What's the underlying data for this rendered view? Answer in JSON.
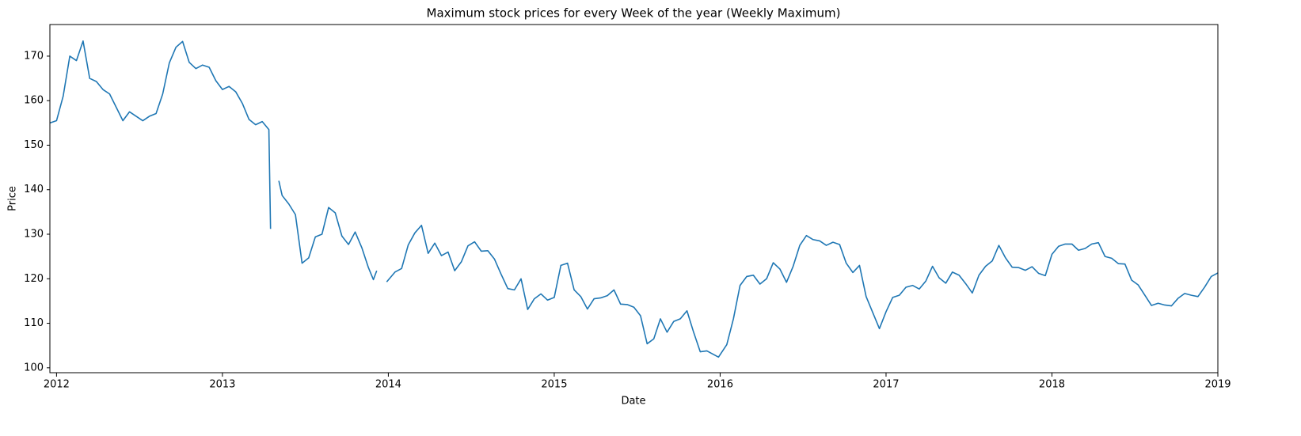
{
  "chart_data": {
    "type": "line",
    "title": "Maximum stock prices for every Week of the year (Weekly Maximum)",
    "xlabel": "Date",
    "ylabel": "Price",
    "color": "#1f77b4",
    "xlim": [
      2011.96,
      2019
    ],
    "ylim": [
      98.9,
      177.1
    ],
    "xticks": [
      2012,
      2013,
      2014,
      2015,
      2016,
      2017,
      2018,
      2019
    ],
    "yticks": [
      100,
      110,
      120,
      130,
      140,
      150,
      160,
      170
    ],
    "x": [
      2011.96,
      2012,
      2012.04,
      2012.08,
      2012.12,
      2012.16,
      2012.2,
      2012.24,
      2012.28,
      2012.32,
      2012.36,
      2012.4,
      2012.44,
      2012.48,
      2012.52,
      2012.56,
      2012.6,
      2012.64,
      2012.68,
      2012.72,
      2012.76,
      2012.8,
      2012.84,
      2012.88,
      2012.92,
      2012.96,
      2013,
      2013.04,
      2013.08,
      2013.12,
      2013.16,
      2013.2,
      2013.24,
      2013.28,
      2013.29,
      2013.32,
      2013.34,
      2013.36,
      2013.4,
      2013.44,
      2013.48,
      2013.52,
      2013.56,
      2013.6,
      2013.64,
      2013.68,
      2013.72,
      2013.76,
      2013.8,
      2013.84,
      2013.88,
      2013.91,
      2013.93,
      2013.95,
      2013.99,
      2014.04,
      2014.08,
      2014.12,
      2014.16,
      2014.2,
      2014.24,
      2014.28,
      2014.32,
      2014.36,
      2014.4,
      2014.44,
      2014.48,
      2014.52,
      2014.56,
      2014.6,
      2014.64,
      2014.68,
      2014.72,
      2014.76,
      2014.8,
      2014.84,
      2014.88,
      2014.92,
      2014.96,
      2015,
      2015.04,
      2015.08,
      2015.12,
      2015.16,
      2015.2,
      2015.24,
      2015.28,
      2015.32,
      2015.36,
      2015.4,
      2015.44,
      2015.48,
      2015.52,
      2015.56,
      2015.6,
      2015.64,
      2015.68,
      2015.72,
      2015.76,
      2015.8,
      2015.84,
      2015.88,
      2015.92,
      2015.96,
      2015.99,
      2016.04,
      2016.08,
      2016.12,
      2016.16,
      2016.2,
      2016.24,
      2016.28,
      2016.32,
      2016.36,
      2016.4,
      2016.44,
      2016.48,
      2016.52,
      2016.56,
      2016.6,
      2016.64,
      2016.68,
      2016.72,
      2016.76,
      2016.8,
      2016.84,
      2016.88,
      2016.92,
      2016.96,
      2017,
      2017.04,
      2017.08,
      2017.12,
      2017.16,
      2017.2,
      2017.24,
      2017.28,
      2017.32,
      2017.36,
      2017.4,
      2017.44,
      2017.48,
      2017.52,
      2017.56,
      2017.6,
      2017.64,
      2017.68,
      2017.72,
      2017.76,
      2017.8,
      2017.84,
      2017.88,
      2017.92,
      2017.96,
      2018,
      2018.04,
      2018.08,
      2018.12,
      2018.16,
      2018.2,
      2018.24,
      2018.28,
      2018.32,
      2018.36,
      2018.4,
      2018.44,
      2018.48,
      2018.52,
      2018.56,
      2018.6,
      2018.64,
      2018.68,
      2018.72,
      2018.76,
      2018.8,
      2018.84,
      2018.88,
      2018.92,
      2018.96,
      2019
    ],
    "values": [
      155,
      155.5,
      161,
      170,
      169,
      173.4,
      165,
      164.3,
      162.5,
      161.5,
      158.5,
      155.5,
      157.5,
      156.5,
      155.5,
      156.5,
      157.1,
      161.5,
      168.5,
      172,
      173.3,
      168.6,
      167.2,
      168,
      167.5,
      164.5,
      162.5,
      163.2,
      162,
      159.4,
      155.8,
      154.6,
      155.3,
      153.5,
      131.2,
      null,
      142,
      138.7,
      136.8,
      134.4,
      123.5,
      124.7,
      129.4,
      130,
      136,
      134.8,
      129.6,
      127.7,
      130.5,
      127,
      122.5,
      119.8,
      121.8,
      null,
      119.3,
      121.5,
      122.3,
      127.6,
      130.3,
      132,
      125.7,
      128,
      125.2,
      126,
      121.8,
      123.8,
      127.4,
      128.3,
      126.2,
      126.3,
      124.4,
      121,
      117.8,
      117.5,
      120,
      113.1,
      115.5,
      116.6,
      115.2,
      115.8,
      123,
      123.5,
      117.5,
      116,
      113.2,
      115.5,
      115.7,
      116.2,
      117.5,
      114.3,
      114.2,
      113.6,
      111.7,
      105.4,
      106.5,
      111,
      108,
      110.4,
      111,
      112.8,
      108,
      103.6,
      103.8,
      103,
      102.4,
      105.2,
      111,
      118.5,
      120.5,
      120.8,
      118.8,
      120,
      123.6,
      122.2,
      119.2,
      122.8,
      127.5,
      129.7,
      128.8,
      128.5,
      127.5,
      128.2,
      127.7,
      123.5,
      121.4,
      123,
      116,
      112.4,
      108.8,
      112.6,
      115.8,
      116.3,
      118.1,
      118.5,
      117.7,
      119.5,
      122.8,
      120.2,
      119,
      121.5,
      120.8,
      118.9,
      116.8,
      120.8,
      122.8,
      124,
      127.5,
      124.7,
      122.6,
      122.5,
      121.9,
      122.7,
      121.2,
      120.7,
      125.5,
      127.3,
      127.8,
      127.8,
      126.4,
      126.8,
      127.8,
      128.1,
      125,
      124.6,
      123.4,
      123.3,
      119.7,
      118.6,
      116.3,
      114,
      114.5,
      114.1,
      113.9,
      115.6,
      116.7,
      116.3,
      116,
      118.1,
      120.5,
      121.3
    ]
  }
}
